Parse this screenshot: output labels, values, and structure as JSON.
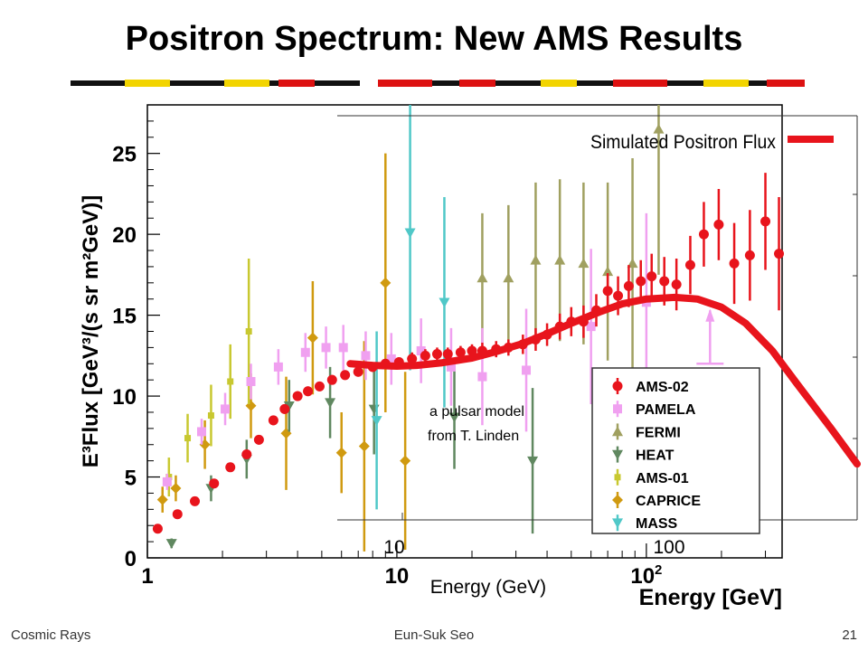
{
  "slide": {
    "title": "Positron Spectrum: New AMS Results",
    "footer_left": "Cosmic Rays",
    "footer_center": "Eun-Suk Seo",
    "footer_right": "21"
  },
  "chart_data": {
    "type": "scatter",
    "xscale": "log",
    "xlim": [
      1,
      350
    ],
    "ylim": [
      0,
      28
    ],
    "ylabel": "E³Flux [GeV³/(s sr m²GeV)]",
    "xlabel": "Energy [GeV]",
    "x_ticks": [
      "1",
      "10",
      "10²"
    ],
    "y_ticks": [
      "0",
      "5",
      "10",
      "15",
      "20",
      "25"
    ],
    "legend_position": "bottom-right",
    "series": [
      {
        "name": "AMS-02",
        "color": "#e8141c",
        "marker": "circle",
        "points": [
          [
            1.1,
            1.8,
            0.2
          ],
          [
            1.32,
            2.7,
            0.2
          ],
          [
            1.55,
            3.5,
            0.2
          ],
          [
            1.85,
            4.6,
            0.2
          ],
          [
            2.15,
            5.6,
            0.2
          ],
          [
            2.5,
            6.4,
            0.2
          ],
          [
            2.8,
            7.3,
            0.3
          ],
          [
            3.2,
            8.5,
            0.3
          ],
          [
            3.55,
            9.2,
            0.3
          ],
          [
            4.0,
            10.0,
            0.3
          ],
          [
            4.4,
            10.3,
            0.3
          ],
          [
            4.9,
            10.6,
            0.3
          ],
          [
            5.5,
            11.0,
            0.3
          ],
          [
            6.2,
            11.3,
            0.3
          ],
          [
            7.0,
            11.5,
            0.3
          ],
          [
            8.0,
            11.8,
            0.3
          ],
          [
            9.0,
            12.0,
            0.3
          ],
          [
            10.2,
            12.1,
            0.3
          ],
          [
            11.5,
            12.3,
            0.4
          ],
          [
            13.0,
            12.5,
            0.4
          ],
          [
            14.5,
            12.6,
            0.4
          ],
          [
            16.0,
            12.6,
            0.4
          ],
          [
            18.0,
            12.7,
            0.4
          ],
          [
            20.0,
            12.8,
            0.4
          ],
          [
            22.0,
            12.8,
            0.5
          ],
          [
            25.0,
            12.9,
            0.5
          ],
          [
            28.0,
            13.0,
            0.5
          ],
          [
            32.0,
            13.2,
            0.6
          ],
          [
            36.0,
            13.5,
            0.7
          ],
          [
            40.0,
            13.8,
            0.7
          ],
          [
            45.0,
            14.3,
            0.8
          ],
          [
            50.0,
            14.6,
            0.9
          ],
          [
            56.0,
            14.6,
            1.0
          ],
          [
            63.0,
            15.3,
            1.0
          ],
          [
            70.0,
            16.5,
            1.1
          ],
          [
            77.0,
            16.2,
            1.2
          ],
          [
            85.0,
            16.8,
            1.3
          ],
          [
            95.0,
            17.1,
            1.3
          ],
          [
            105.0,
            17.4,
            1.4
          ],
          [
            118.0,
            17.1,
            1.5
          ],
          [
            132.0,
            16.9,
            1.6
          ],
          [
            150.0,
            18.1,
            1.8
          ],
          [
            170.0,
            20.0,
            2.0
          ],
          [
            195.0,
            20.6,
            2.2
          ],
          [
            225.0,
            18.2,
            2.5
          ],
          [
            260.0,
            18.7,
            2.8
          ],
          [
            300.0,
            20.8,
            3.0
          ],
          [
            340.0,
            18.8,
            3.5
          ]
        ]
      },
      {
        "name": "PAMELA",
        "color": "#f0a0f0",
        "marker": "square",
        "points": [
          [
            1.2,
            4.7,
            0.5
          ],
          [
            1.65,
            7.8,
            0.8
          ],
          [
            2.05,
            9.2,
            1.0
          ],
          [
            2.6,
            10.9,
            1.1
          ],
          [
            3.35,
            11.8,
            1.1
          ],
          [
            4.3,
            12.7,
            1.2
          ],
          [
            5.2,
            13.0,
            1.3
          ],
          [
            6.1,
            13.0,
            1.4
          ],
          [
            7.5,
            12.5,
            1.5
          ],
          [
            9.5,
            12.3,
            1.6
          ],
          [
            12.5,
            12.8,
            2.0
          ],
          [
            16.5,
            11.8,
            2.4
          ],
          [
            22.0,
            11.2,
            3.0
          ],
          [
            33.0,
            11.6,
            3.8
          ],
          [
            60.0,
            14.3,
            4.8
          ],
          [
            100.0,
            15.8,
            5.5
          ]
        ]
      },
      {
        "name": "FERMI",
        "color": "#a0a060",
        "marker": "triangle-up",
        "points": [
          [
            22.0,
            17.3,
            4.0
          ],
          [
            28.0,
            17.3,
            4.5
          ],
          [
            36.0,
            18.4,
            4.8
          ],
          [
            45.0,
            18.4,
            5.0
          ],
          [
            56.0,
            18.2,
            5.0
          ],
          [
            70.0,
            17.7,
            5.5
          ],
          [
            88.0,
            18.2,
            6.5
          ],
          [
            112.0,
            26.5,
            9.0
          ]
        ]
      },
      {
        "name": "HEAT",
        "color": "#608860",
        "marker": "triangle-down",
        "points": [
          [
            1.25,
            0.9,
            0.3
          ],
          [
            1.8,
            4.3,
            0.8
          ],
          [
            2.5,
            6.1,
            1.2
          ],
          [
            3.7,
            9.4,
            1.6
          ],
          [
            5.4,
            9.6,
            2.2
          ],
          [
            8.1,
            9.2,
            2.8
          ],
          [
            17.0,
            8.7,
            3.2
          ],
          [
            35.0,
            6.0,
            4.5
          ]
        ]
      },
      {
        "name": "AMS-01",
        "color": "#c8c830",
        "marker": "square-small",
        "points": [
          [
            1.22,
            5.0,
            1.2
          ],
          [
            1.45,
            7.4,
            1.5
          ],
          [
            1.8,
            8.8,
            1.9
          ],
          [
            2.15,
            10.9,
            2.3
          ],
          [
            2.55,
            14.0,
            4.5
          ]
        ]
      },
      {
        "name": "CAPRICE",
        "color": "#d09a10",
        "marker": "diamond",
        "points": [
          [
            1.15,
            3.6,
            0.8
          ],
          [
            1.3,
            4.3,
            0.8
          ],
          [
            1.7,
            7.0,
            1.5
          ],
          [
            2.6,
            9.4,
            2.0
          ],
          [
            3.6,
            7.7,
            3.5
          ],
          [
            4.6,
            13.6,
            3.5
          ],
          [
            6.0,
            6.5,
            2.5
          ],
          [
            7.4,
            6.9,
            6.5
          ],
          [
            9.0,
            17.0,
            8.0
          ],
          [
            10.8,
            6.0,
            5.5
          ]
        ]
      },
      {
        "name": "MASS",
        "color": "#50c8c8",
        "marker": "triangle-down",
        "points": [
          [
            8.3,
            8.5,
            5.5
          ],
          [
            11.3,
            20.1,
            8.5
          ],
          [
            15.5,
            15.8,
            6.5
          ]
        ]
      }
    ],
    "model_curve": {
      "color": "#e8141c",
      "points": [
        [
          6.5,
          12.0
        ],
        [
          8,
          11.9
        ],
        [
          10,
          11.85
        ],
        [
          12,
          11.9
        ],
        [
          15,
          12.05
        ],
        [
          20,
          12.35
        ],
        [
          25,
          12.75
        ],
        [
          32,
          13.25
        ],
        [
          40,
          13.85
        ],
        [
          50,
          14.5
        ],
        [
          65,
          15.2
        ],
        [
          80,
          15.7
        ],
        [
          100,
          16.0
        ],
        [
          130,
          16.1
        ],
        [
          160,
          16.0
        ],
        [
          200,
          15.5
        ],
        [
          250,
          14.5
        ],
        [
          320,
          12.8
        ],
        [
          400,
          10.8
        ],
        [
          550,
          8.0
        ],
        [
          700,
          5.8
        ]
      ]
    },
    "inset": {
      "legend_label": "Simulated Positron Flux",
      "xlabel": "Energy (GeV)",
      "x_ticks": [
        "10",
        "100"
      ],
      "annotation": [
        "a pulsar model",
        "from T. Linden"
      ]
    }
  }
}
